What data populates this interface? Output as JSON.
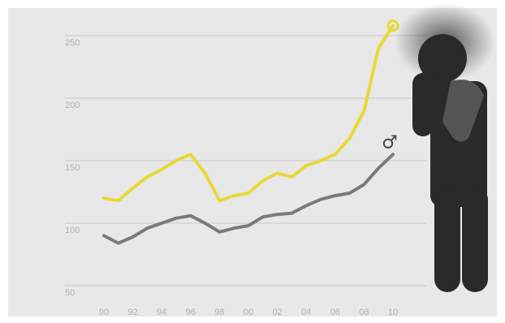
{
  "chart_data": {
    "type": "line",
    "title": "",
    "xlabel": "",
    "ylabel": "",
    "x": [
      1990,
      1991,
      1992,
      1993,
      1994,
      1995,
      1996,
      1997,
      1998,
      1999,
      2000,
      2001,
      2002,
      2003,
      2004,
      2005,
      2006,
      2007,
      2008,
      2009,
      2010
    ],
    "x_tick_labels": [
      "90",
      "92",
      "94",
      "96",
      "98",
      "00",
      "02",
      "04",
      "06",
      "08",
      "10"
    ],
    "y_ticks": [
      50,
      100,
      150,
      200,
      250
    ],
    "ylim": [
      50,
      250
    ],
    "grid": true,
    "series": [
      {
        "name": "",
        "color": "#e8d838",
        "end_marker": "circle",
        "values": [
          120,
          118,
          128,
          137,
          143,
          150,
          155,
          140,
          118,
          122,
          124,
          134,
          140,
          137,
          146,
          150,
          155,
          168,
          190,
          240,
          258
        ]
      },
      {
        "name": "",
        "color": "#7a7a7a",
        "end_marker": "male-symbol",
        "values": [
          90,
          84,
          89,
          96,
          100,
          104,
          106,
          100,
          93,
          96,
          98,
          105,
          107,
          108,
          114,
          119,
          122,
          124,
          131,
          144,
          155
        ]
      }
    ]
  },
  "annotations": {
    "male_symbol": "♂"
  },
  "illustration": {
    "figure_icon": "stressed-person-figure-icon",
    "background_color": "#e8e8e8",
    "gridline_color": "#c9c9c9",
    "figure_color": "#2a2a2a",
    "arm_color": "#555555"
  }
}
